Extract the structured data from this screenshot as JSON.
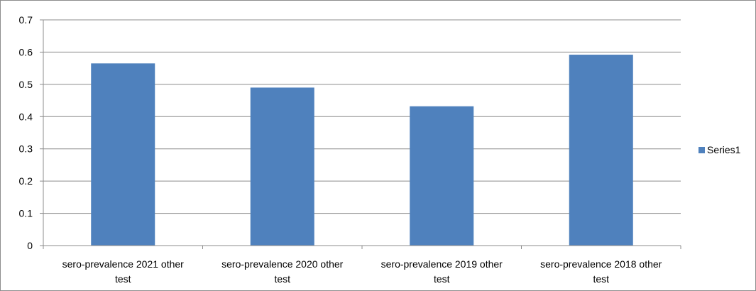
{
  "chart_data": {
    "type": "bar",
    "categories": [
      [
        "sero-prevalence 2021 other",
        "test"
      ],
      [
        "sero-prevalence 2020 other",
        "test"
      ],
      [
        "sero-prevalence 2019 other",
        "test"
      ],
      [
        "sero-prevalence 2018 other",
        "test"
      ]
    ],
    "series": [
      {
        "name": "Series1",
        "values": [
          0.565,
          0.49,
          0.432,
          0.592
        ],
        "color": "#4f81bd"
      }
    ],
    "yticks": [
      "0",
      "0.1",
      "0.2",
      "0.3",
      "0.4",
      "0.5",
      "0.6",
      "0.7"
    ],
    "ylim": [
      0,
      0.7
    ],
    "grid": true,
    "legend_position": "right",
    "title": "",
    "xlabel": "",
    "ylabel": ""
  }
}
